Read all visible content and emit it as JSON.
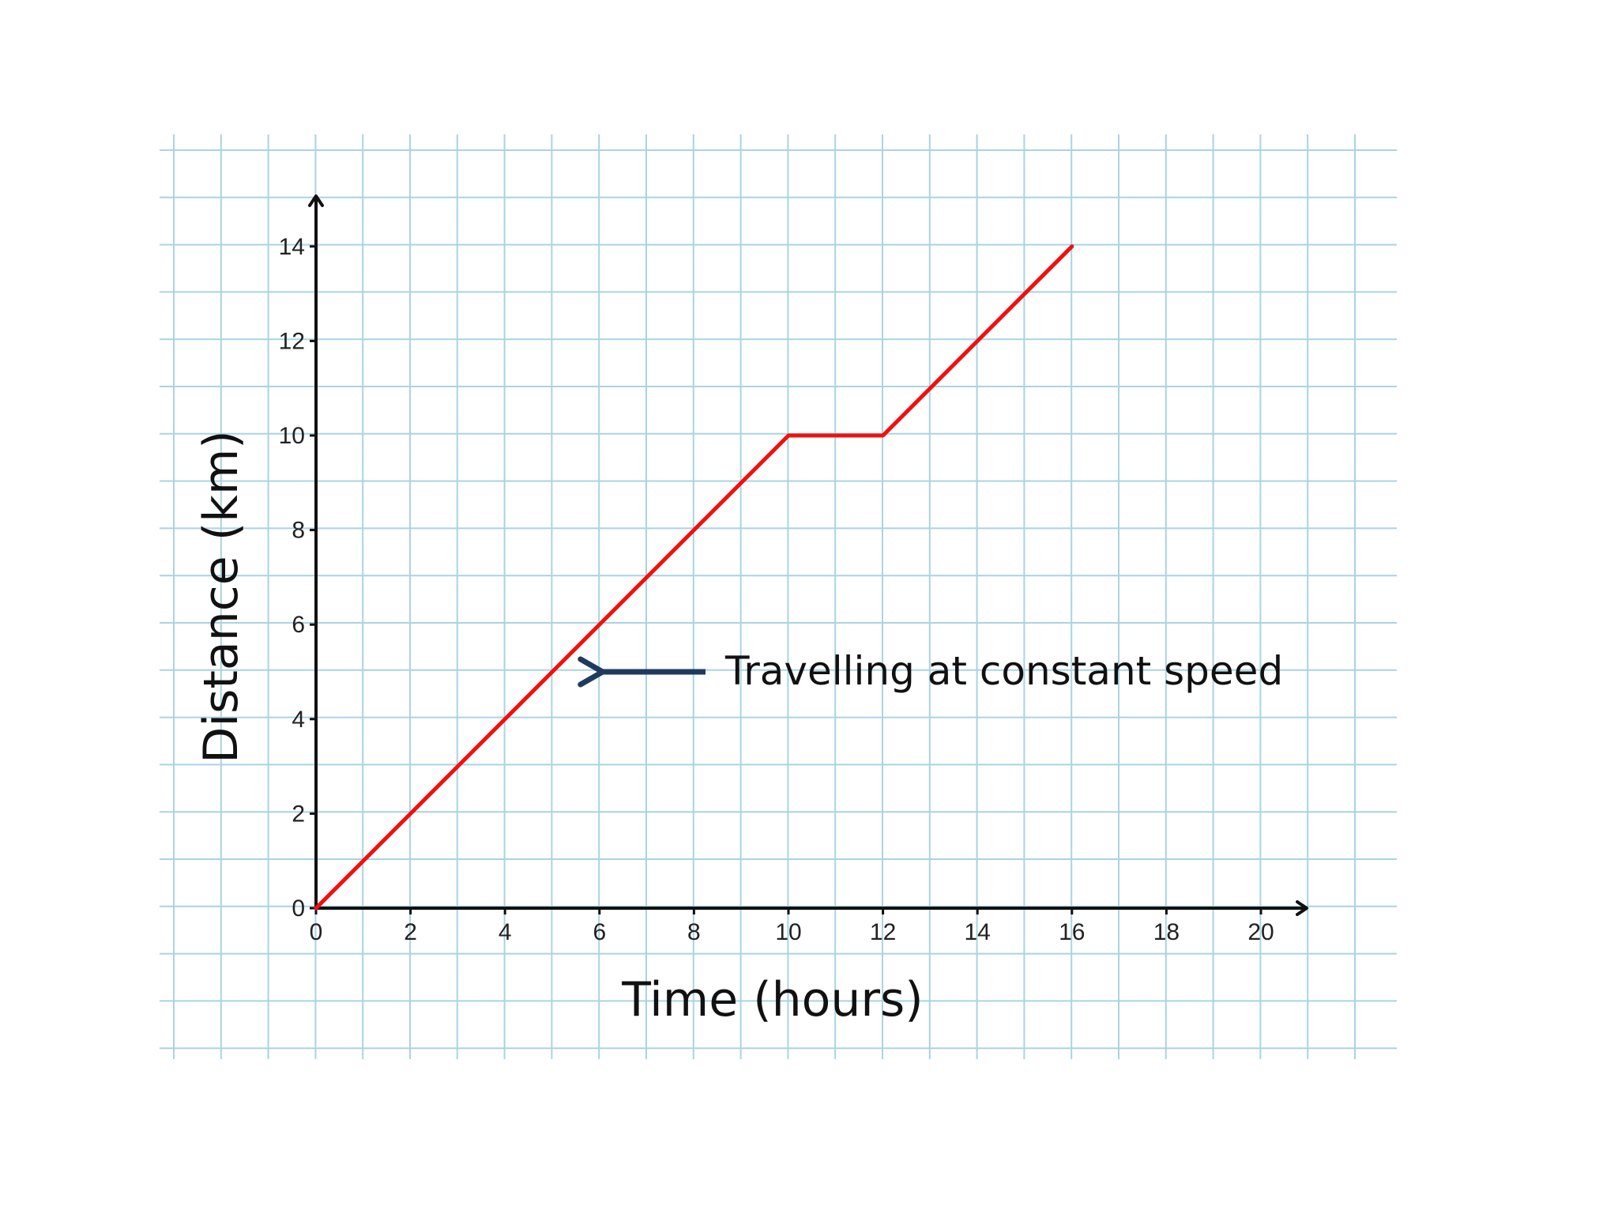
{
  "chart_data": {
    "type": "line",
    "title": "",
    "xlabel": "Time (hours)",
    "ylabel": "Distance (km)",
    "xlim": [
      0,
      20
    ],
    "ylim": [
      0,
      14
    ],
    "x_ticks": [
      "0",
      "2",
      "4",
      "6",
      "8",
      "10",
      "12",
      "14",
      "16",
      "18",
      "20"
    ],
    "y_ticks": [
      "0",
      "2",
      "4",
      "6",
      "8",
      "10",
      "12",
      "14"
    ],
    "grid": true,
    "legend": "none",
    "series": [
      {
        "x": [
          0,
          10,
          12,
          16
        ],
        "y": [
          0,
          10,
          10,
          14
        ],
        "color": "#ee1111"
      }
    ],
    "annotations": [
      {
        "text": "Travelling at constant speed",
        "points_to": {
          "x": 6,
          "y": 5
        }
      }
    ],
    "colors": {
      "grid": "#a9d3e6",
      "axis": "#111111",
      "annotation_arrow": "#1f3a5f"
    }
  }
}
